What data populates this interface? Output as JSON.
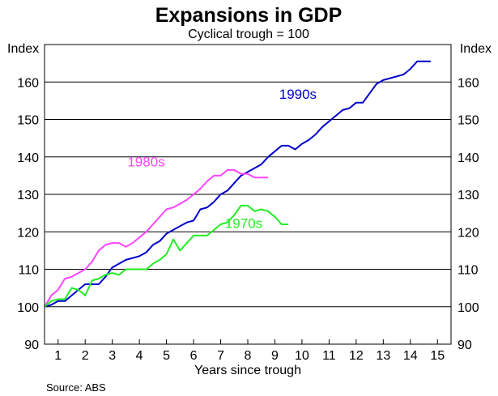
{
  "chart_data": {
    "type": "line",
    "title": "Expansions in GDP",
    "subtitle": "Cyclical trough = 100",
    "xlabel": "Years since trough",
    "ylabel_left": "Index",
    "ylabel_right": "Index",
    "source": "Source: ABS",
    "xlim": [
      0.5,
      15.5
    ],
    "ylim": [
      90,
      170
    ],
    "xticks": [
      1,
      2,
      3,
      4,
      5,
      6,
      7,
      8,
      9,
      10,
      11,
      12,
      13,
      14,
      15
    ],
    "yticks": [
      90,
      100,
      110,
      120,
      130,
      140,
      150,
      160
    ],
    "grid": "horizontal",
    "series": [
      {
        "name": "1990s",
        "color": "#0000cc",
        "x": [
          0.5,
          0.75,
          1.0,
          1.25,
          1.5,
          1.75,
          2.0,
          2.25,
          2.5,
          2.75,
          3.0,
          3.25,
          3.5,
          3.75,
          4.0,
          4.25,
          4.5,
          4.75,
          5.0,
          5.25,
          5.5,
          5.75,
          6.0,
          6.25,
          6.5,
          6.75,
          7.0,
          7.25,
          7.5,
          7.75,
          8.0,
          8.25,
          8.5,
          8.75,
          9.0,
          9.25,
          9.5,
          9.75,
          10.0,
          10.25,
          10.5,
          10.75,
          11.0,
          11.25,
          11.5,
          11.75,
          12.0,
          12.25,
          12.5,
          12.75,
          13.0,
          13.25,
          13.5,
          13.75,
          14.0,
          14.25,
          14.5,
          14.75
        ],
        "values": [
          100,
          100.5,
          101.5,
          101.5,
          103,
          104.5,
          106,
          106,
          106,
          108,
          110.5,
          111.5,
          112.5,
          113,
          113.5,
          114.5,
          116.5,
          117.5,
          119.5,
          120.5,
          121.5,
          122.5,
          123,
          126,
          126.5,
          128,
          130,
          131,
          133,
          135,
          136,
          137,
          138,
          140,
          141.5,
          143,
          143,
          142,
          143.5,
          144.5,
          146,
          148,
          149.5,
          151,
          152.5,
          153,
          154.5,
          154.5,
          157,
          159.5,
          160.5,
          161,
          161.5,
          162,
          163.5,
          165.5,
          165.5,
          165.5
        ]
      },
      {
        "name": "1980s",
        "color": "#ff44ff",
        "x": [
          0.5,
          0.75,
          1.0,
          1.25,
          1.5,
          1.75,
          2.0,
          2.25,
          2.5,
          2.75,
          3.0,
          3.25,
          3.5,
          3.75,
          4.0,
          4.25,
          4.5,
          4.75,
          5.0,
          5.25,
          5.5,
          5.75,
          6.0,
          6.25,
          6.5,
          6.75,
          7.0,
          7.25,
          7.5,
          7.75,
          8.0,
          8.25,
          8.5,
          8.75
        ],
        "values": [
          100,
          103,
          104.5,
          107.5,
          108,
          109,
          110,
          112,
          115,
          116.5,
          117,
          117,
          116,
          117,
          118.5,
          120,
          122,
          124,
          126,
          126.5,
          127.5,
          128.5,
          130,
          131.5,
          133.5,
          135,
          135,
          136.5,
          136.5,
          135.5,
          135.5,
          134.5,
          134.5,
          134.5
        ]
      },
      {
        "name": "1970s",
        "color": "#22ee22",
        "x": [
          0.5,
          0.75,
          1.0,
          1.25,
          1.5,
          1.75,
          2.0,
          2.25,
          2.5,
          2.75,
          3.0,
          3.25,
          3.5,
          3.75,
          4.0,
          4.25,
          4.5,
          4.75,
          5.0,
          5.25,
          5.5,
          5.75,
          6.0,
          6.25,
          6.5,
          6.75,
          7.0,
          7.25,
          7.5,
          7.75,
          8.0,
          8.25,
          8.5,
          8.75,
          9.0,
          9.25,
          9.5
        ],
        "values": [
          100,
          101.5,
          102,
          102,
          105,
          104.5,
          103,
          107,
          107.5,
          108.5,
          109,
          108.5,
          110,
          110,
          110,
          110,
          111.5,
          112.5,
          114,
          118,
          115,
          117,
          119,
          119,
          119,
          120.5,
          122,
          122.5,
          124.5,
          127,
          127,
          125.5,
          126,
          125.5,
          124,
          122,
          122
        ]
      }
    ],
    "annotations": [
      {
        "text": "1990s",
        "x": 9.85,
        "y": 155.5,
        "color": "#0000cc"
      },
      {
        "text": "1980s",
        "x": 4.25,
        "y": 137.5,
        "color": "#ff44ff"
      },
      {
        "text": "1970s",
        "x": 7.85,
        "y": 121,
        "color": "#22ee22"
      }
    ]
  }
}
